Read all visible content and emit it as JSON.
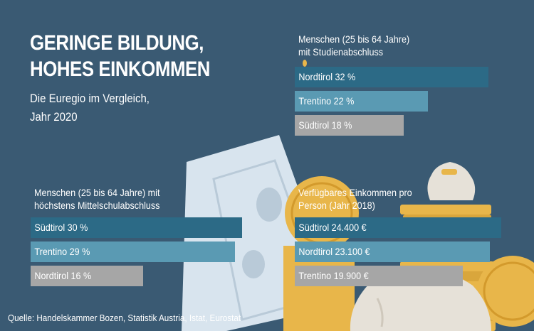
{
  "header": {
    "title_line1": "GERINGE BILDUNG,",
    "title_line2": "HOHES EINKOMMEN",
    "subtitle_line1": "Die Euregio im Vergleich,",
    "subtitle_line2": "Jahr 2020"
  },
  "colors": {
    "background": "#3a5a73",
    "bar_dark": "#2c6a86",
    "bar_mid": "#5a9ab3",
    "bar_light": "#a6a6a6",
    "coin": "#e8b64a",
    "banknote": "#d8e4ee"
  },
  "decor_icons": [
    "banknote-icon",
    "coin-stack-icon",
    "money-bag-icon"
  ],
  "chart_data": [
    {
      "type": "bar",
      "orientation": "horizontal",
      "title_line1": "Menschen (25 bis 64 Jahre)",
      "title_line2": "mit Studienabschluss",
      "categories": [
        "Nordtirol",
        "Trentino",
        "Südtirol"
      ],
      "values": [
        32,
        22,
        18
      ],
      "labels": [
        "Nordtirol 32 %",
        "Trentino 22 %",
        "Südtirol 18 %"
      ],
      "unit": "%"
    },
    {
      "type": "bar",
      "orientation": "horizontal",
      "title_line1": "Menschen (25 bis 64 Jahre) mit",
      "title_line2": "höchstens Mittelschulabschluss",
      "categories": [
        "Südtirol",
        "Trentino",
        "Nordtirol"
      ],
      "values": [
        30,
        29,
        16
      ],
      "labels": [
        "Südtirol 30 %",
        "Trentino 29 %",
        "Nordtirol 16 %"
      ],
      "unit": "%"
    },
    {
      "type": "bar",
      "orientation": "horizontal",
      "title_line1": "Verfügbares Einkommen pro",
      "title_line2": "Person (Jahr 2018)",
      "categories": [
        "Südtirol",
        "Nordtirol",
        "Trentino"
      ],
      "values": [
        24400,
        23100,
        19900
      ],
      "labels": [
        "Südtirol 24.400 €",
        "Nordtirol 23.100 €",
        "Trentino 19.900 €"
      ],
      "unit": "€"
    }
  ],
  "source": "Quelle: Handelskammer Bozen, Statistik Austria, Istat, Eurostat"
}
